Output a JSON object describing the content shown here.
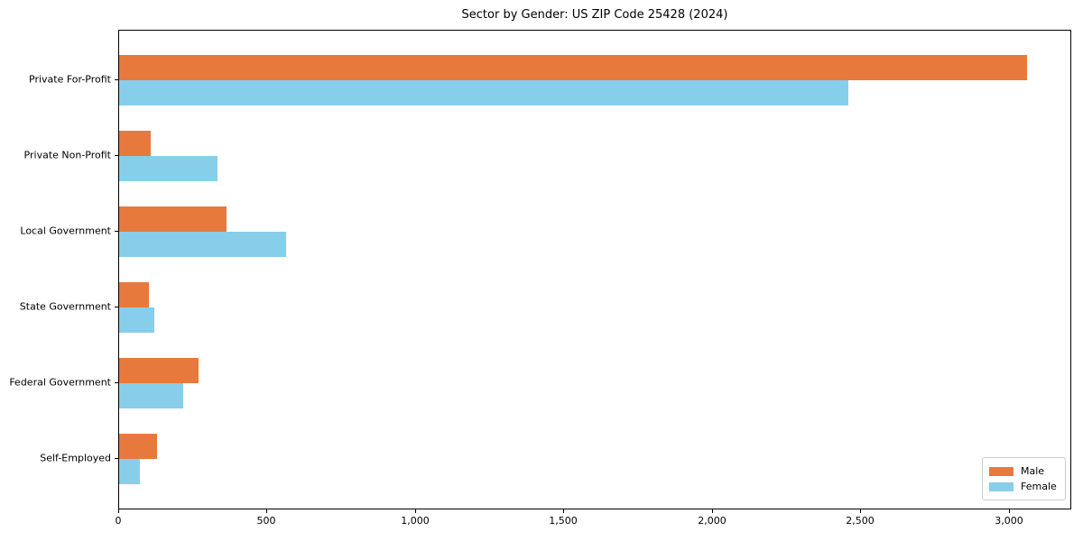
{
  "chart_data": {
    "type": "bar",
    "orientation": "horizontal",
    "title": "Sector by Gender: US ZIP Code 25428 (2024)",
    "xlabel": "",
    "ylabel": "",
    "categories": [
      "Private For-Profit",
      "Private Non-Profit",
      "Local Government",
      "State Government",
      "Federal Government",
      "Self-Employed"
    ],
    "series": [
      {
        "name": "Male",
        "color": "#e8793d",
        "values": [
          3058,
          107,
          362,
          100,
          268,
          129
        ]
      },
      {
        "name": "Female",
        "color": "#87ceeb",
        "values": [
          2455,
          330,
          563,
          119,
          215,
          70
        ]
      }
    ],
    "xlim": [
      0,
      3210
    ],
    "x_ticks": [
      0,
      500,
      1000,
      1500,
      2000,
      2500,
      3000
    ],
    "x_tick_labels": [
      "0",
      "500",
      "1,000",
      "1,500",
      "2,000",
      "2,500",
      "3,000"
    ],
    "grid": false,
    "legend_position": "lower right",
    "axis_color": "#000000",
    "background_color": "#ffffff"
  }
}
